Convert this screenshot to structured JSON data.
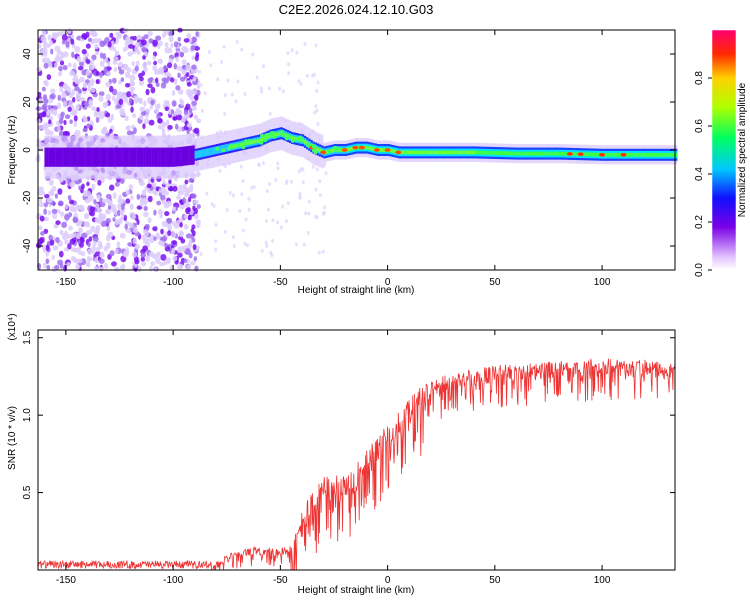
{
  "title": "C2E2.2026.024.12.10.G03",
  "chart_data": [
    {
      "type": "heatmap",
      "name": "spectrogram",
      "xlabel": "Height of straight line (km)",
      "ylabel": "Frequency (Hz)",
      "xlim": [
        -163,
        134
      ],
      "ylim": [
        -50,
        50
      ],
      "x_ticks": [
        -150,
        -100,
        -50,
        0,
        50,
        100
      ],
      "y_ticks": [
        -40,
        -20,
        0,
        20,
        40
      ],
      "colorbar": {
        "label": "Normalized spectral amplitude",
        "range": [
          0,
          1
        ],
        "ticks": [
          0.0,
          0.2,
          0.4,
          0.6,
          0.8
        ]
      },
      "ridge": {
        "x": [
          -160,
          -140,
          -120,
          -100,
          -90,
          -80,
          -70,
          -60,
          -55,
          -50,
          -45,
          -40,
          -35,
          -30,
          -25,
          -20,
          -15,
          -10,
          -5,
          0,
          5,
          10,
          20,
          40,
          60,
          80,
          100,
          120,
          134
        ],
        "freq": [
          -3,
          -3,
          -3,
          -3,
          -2,
          0,
          2,
          4,
          6,
          7,
          5,
          4,
          1,
          -1,
          0,
          0,
          1,
          1,
          0,
          0,
          -1,
          -1,
          -1,
          -1,
          -1.5,
          -1.5,
          -2,
          -2,
          -2
        ]
      }
    },
    {
      "type": "line",
      "name": "snr",
      "xlabel": "Height of straight line (km)",
      "ylabel": "SNR (10 * v/v)",
      "y_multiplier": "(x10⁴)",
      "xlim": [
        -163,
        134
      ],
      "ylim": [
        0,
        1.55
      ],
      "x_ticks": [
        -150,
        -100,
        -50,
        0,
        50,
        100
      ],
      "y_ticks": [
        0.5,
        1.0,
        1.5
      ],
      "color": "#ee3333",
      "envelope": {
        "x": [
          -163,
          -100,
          -82,
          -75,
          -62,
          -52,
          -45,
          -40,
          -35,
          -30,
          -25,
          -20,
          -15,
          -10,
          -5,
          0,
          5,
          10,
          15,
          20,
          25,
          30,
          40,
          50,
          60,
          70,
          80,
          90,
          100,
          110,
          120,
          134
        ],
        "y": [
          0.02,
          0.02,
          0.03,
          0.1,
          0.15,
          0.14,
          0.16,
          0.4,
          0.5,
          0.6,
          0.62,
          0.62,
          0.68,
          0.78,
          0.85,
          0.95,
          1.02,
          1.1,
          1.18,
          1.22,
          1.25,
          1.28,
          1.3,
          1.32,
          1.34,
          1.34,
          1.35,
          1.36,
          1.37,
          1.36,
          1.36,
          1.35
        ]
      }
    }
  ]
}
